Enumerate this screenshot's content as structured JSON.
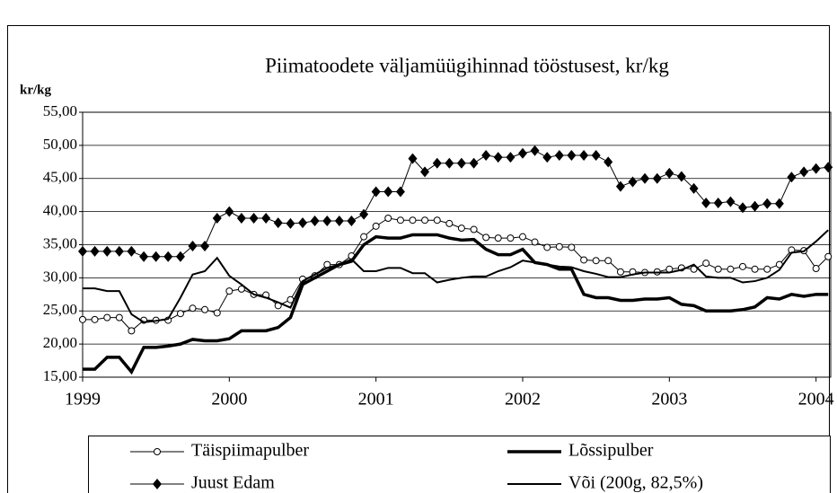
{
  "chart_data": {
    "type": "line",
    "title": "Piimatoodete väljamüügihinnad tööstusest, kr/kg",
    "y_label": "kr/kg",
    "x": [
      1999.0,
      1999.083,
      1999.167,
      1999.25,
      1999.333,
      1999.417,
      1999.5,
      1999.583,
      1999.667,
      1999.75,
      1999.833,
      1999.917,
      2000.0,
      2000.083,
      2000.167,
      2000.25,
      2000.333,
      2000.417,
      2000.5,
      2000.583,
      2000.667,
      2000.75,
      2000.833,
      2000.917,
      2001.0,
      2001.083,
      2001.167,
      2001.25,
      2001.333,
      2001.417,
      2001.5,
      2001.583,
      2001.667,
      2001.75,
      2001.833,
      2001.917,
      2002.0,
      2002.083,
      2002.167,
      2002.25,
      2002.333,
      2002.417,
      2002.5,
      2002.583,
      2002.667,
      2002.75,
      2002.833,
      2002.917,
      2003.0,
      2003.083,
      2003.167,
      2003.25,
      2003.333,
      2003.417,
      2003.5,
      2003.583,
      2003.667,
      2003.75,
      2003.833,
      2003.917,
      2004.0,
      2004.083
    ],
    "series": [
      {
        "name": "Täispiimapulber",
        "color": "#000000",
        "marker": "circle",
        "width": 1,
        "values": [
          23.7,
          23.7,
          24,
          24,
          22,
          23.6,
          23.6,
          23.6,
          24.6,
          25.4,
          25.2,
          24.7,
          28,
          28.3,
          27.5,
          27.4,
          25.8,
          26.7,
          29.8,
          30.3,
          32,
          32,
          33.3,
          36.2,
          37.8,
          39,
          38.7,
          38.7,
          38.7,
          38.7,
          38.2,
          37.5,
          37.3,
          36.1,
          36,
          36,
          36.2,
          35.4,
          34.6,
          34.7,
          34.6,
          32.7,
          32.6,
          32.6,
          30.9,
          30.9,
          30.8,
          30.9,
          31.3,
          31.5,
          31.3,
          32.2,
          31.3,
          31.3,
          31.7,
          31.3,
          31.3,
          32,
          34.2,
          34.1,
          31.4,
          33.2
        ]
      },
      {
        "name": "Lõssipulber",
        "color": "#000000",
        "marker": "none",
        "width": 3.5,
        "values": [
          16.2,
          16.2,
          18,
          18,
          15.8,
          19.5,
          19.5,
          19.7,
          20,
          20.7,
          20.5,
          20.5,
          20.8,
          22,
          22,
          22,
          22.5,
          24,
          29,
          30,
          31,
          32,
          32.5,
          35,
          36.2,
          36,
          36,
          36.5,
          36.5,
          36.5,
          36,
          35.7,
          35.8,
          34.3,
          33.5,
          33.5,
          34.3,
          32.3,
          32,
          31.3,
          31.3,
          27.5,
          27,
          27,
          26.6,
          26.6,
          26.8,
          26.8,
          27,
          26,
          25.8,
          25,
          25,
          25,
          25.2,
          25.6,
          27,
          26.8,
          27.5,
          27.2,
          27.5,
          27.5
        ]
      },
      {
        "name": "Juust Edam",
        "color": "#000000",
        "marker": "diamond",
        "width": 1,
        "values": [
          34,
          34,
          34,
          34,
          34,
          33.2,
          33.2,
          33.2,
          33.2,
          34.8,
          34.8,
          39,
          40,
          39,
          39,
          39,
          38.3,
          38.2,
          38.3,
          38.6,
          38.6,
          38.6,
          38.6,
          39.6,
          43,
          43,
          43,
          48,
          46,
          47.3,
          47.3,
          47.3,
          47.3,
          48.5,
          48.2,
          48.2,
          48.8,
          49.2,
          48.2,
          48.5,
          48.5,
          48.5,
          48.5,
          47.5,
          43.8,
          44.5,
          45,
          45,
          45.8,
          45.3,
          43.5,
          41.3,
          41.3,
          41.5,
          40.6,
          40.8,
          41.2,
          41.2,
          45.2,
          46,
          46.5,
          46.7
        ]
      },
      {
        "name": "Või (200g, 82,5%)",
        "color": "#000000",
        "marker": "none",
        "width": 2,
        "values": [
          28.4,
          28.4,
          28,
          28,
          24.5,
          23.3,
          23.5,
          23.8,
          27,
          30.5,
          31,
          33,
          30.3,
          29,
          27.5,
          27,
          26.3,
          25.5,
          29.5,
          30.5,
          31.5,
          32,
          32.8,
          31,
          31,
          31.5,
          31.5,
          30.7,
          30.7,
          29.3,
          29.7,
          30,
          30.2,
          30.2,
          31,
          31.6,
          32.6,
          32.3,
          32,
          31.7,
          31.6,
          31,
          30.6,
          30.1,
          30.1,
          30.5,
          30.8,
          30.8,
          30.8,
          31.2,
          32,
          30.2,
          30,
          30,
          29.3,
          29.5,
          30,
          31.2,
          33.8,
          34,
          35.5,
          37.2
        ]
      }
    ],
    "xlim": [
      1999,
      2004.1
    ],
    "xticks": [
      1999,
      2000,
      2001,
      2002,
      2003,
      2004
    ],
    "ylim": [
      15,
      55
    ],
    "yticks": [
      {
        "value": 15,
        "label": "15,00"
      },
      {
        "value": 20,
        "label": "20,00"
      },
      {
        "value": 25,
        "label": "25,00"
      },
      {
        "value": 30,
        "label": "30,00"
      },
      {
        "value": 35,
        "label": "35,00"
      },
      {
        "value": 40,
        "label": "40,00"
      },
      {
        "value": 45,
        "label": "45,00"
      },
      {
        "value": 50,
        "label": "50,00"
      },
      {
        "value": 55,
        "label": "55,00"
      }
    ],
    "grid": true
  }
}
